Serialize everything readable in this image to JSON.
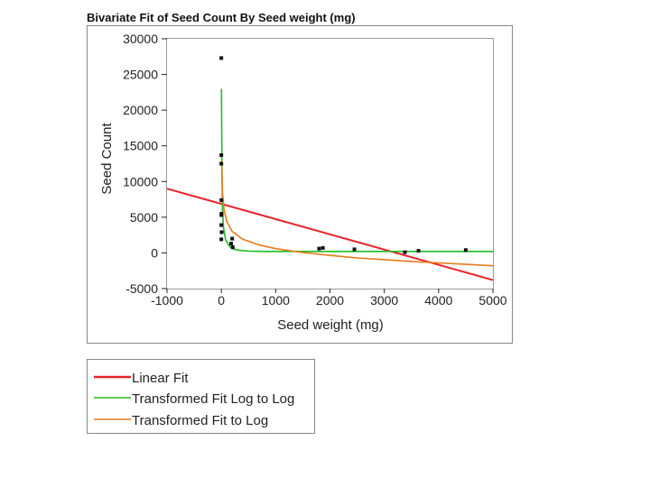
{
  "chart_data": {
    "type": "scatter",
    "title": "Bivariate Fit of Seed Count By Seed weight (mg)",
    "xlabel": "Seed weight (mg)",
    "ylabel": "Seed Count",
    "xlim": [
      -1000,
      5000
    ],
    "ylim": [
      -5000,
      30000
    ],
    "xticks": [
      -1000,
      0,
      1000,
      2000,
      3000,
      4000,
      5000
    ],
    "yticks": [
      -5000,
      0,
      5000,
      10000,
      15000,
      20000,
      25000,
      30000
    ],
    "points": [
      {
        "x": 0,
        "y": 27300
      },
      {
        "x": 0,
        "y": 13700
      },
      {
        "x": 0,
        "y": 12500
      },
      {
        "x": 0,
        "y": 7400
      },
      {
        "x": 5,
        "y": 5500
      },
      {
        "x": 0,
        "y": 5300
      },
      {
        "x": 0,
        "y": 3900
      },
      {
        "x": 5,
        "y": 2900
      },
      {
        "x": 0,
        "y": 1900
      },
      {
        "x": 200,
        "y": 2000
      },
      {
        "x": 180,
        "y": 1300
      },
      {
        "x": 210,
        "y": 800
      },
      {
        "x": 1800,
        "y": 600
      },
      {
        "x": 1870,
        "y": 700
      },
      {
        "x": 2450,
        "y": 500
      },
      {
        "x": 3380,
        "y": 100
      },
      {
        "x": 3630,
        "y": 300
      },
      {
        "x": 4500,
        "y": 400
      }
    ],
    "series": [
      {
        "name": "Linear Fit",
        "color": "#e8232a",
        "x": [
          -1000,
          5000
        ],
        "y": [
          9000,
          -3800
        ]
      },
      {
        "name": "Transformed Fit Log to Log",
        "color": "#22bb22",
        "x": [
          2,
          10,
          20,
          40,
          80,
          150,
          200,
          300,
          500,
          800,
          1200,
          2000,
          3000,
          4000,
          5000
        ],
        "y": [
          23000,
          12500,
          6000,
          3500,
          1800,
          900,
          600,
          400,
          250,
          200,
          200,
          200,
          200,
          200,
          200
        ]
      },
      {
        "name": "Transformed Fit to Log",
        "color": "#e87a1a",
        "x": [
          5,
          20,
          50,
          100,
          200,
          400,
          700,
          1000,
          1500,
          2000,
          2500,
          3000,
          3500,
          4000,
          4500,
          5000
        ],
        "y": [
          13000,
          8500,
          6000,
          4400,
          3000,
          1900,
          1100,
          600,
          50,
          -350,
          -700,
          -950,
          -1200,
          -1400,
          -1600,
          -1800
        ]
      }
    ]
  }
}
